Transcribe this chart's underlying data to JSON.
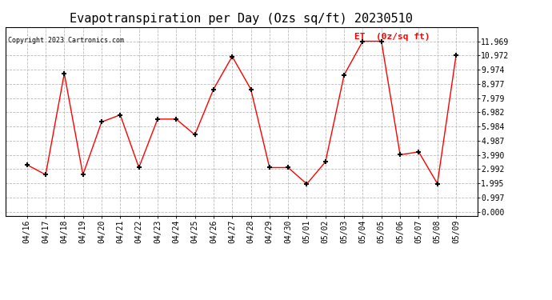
{
  "title": "Evapotranspiration per Day (Ozs sq/ft) 20230510",
  "copyright_text": "Copyright 2023 Cartronics.com",
  "legend_label": "ET  (0z/sq ft)",
  "dates": [
    "04/16",
    "04/17",
    "04/18",
    "04/19",
    "04/20",
    "04/21",
    "04/22",
    "04/23",
    "04/24",
    "04/25",
    "04/26",
    "04/27",
    "04/28",
    "04/29",
    "04/30",
    "05/01",
    "05/02",
    "05/03",
    "05/04",
    "05/05",
    "05/06",
    "05/07",
    "05/08",
    "05/09"
  ],
  "values": [
    3.3,
    2.6,
    9.7,
    2.6,
    6.3,
    6.8,
    3.1,
    6.5,
    6.5,
    5.4,
    8.6,
    10.9,
    8.6,
    3.1,
    3.1,
    1.95,
    3.5,
    9.6,
    11.969,
    11.969,
    4.0,
    4.2,
    1.97,
    10.97
  ],
  "line_color": "red",
  "marker": "+",
  "marker_size": 5,
  "marker_edge_width": 1.5,
  "line_width": 1.0,
  "ylim": [
    -0.3,
    12.966
  ],
  "yticks": [
    0.0,
    0.997,
    1.995,
    2.992,
    3.99,
    4.987,
    5.984,
    6.982,
    7.979,
    8.977,
    9.974,
    10.972,
    11.969
  ],
  "bg_color": "#ffffff",
  "grid_color": "#bbbbbb",
  "title_fontsize": 11,
  "tick_fontsize": 7,
  "copyright_fontsize": 6,
  "legend_fontsize": 8
}
